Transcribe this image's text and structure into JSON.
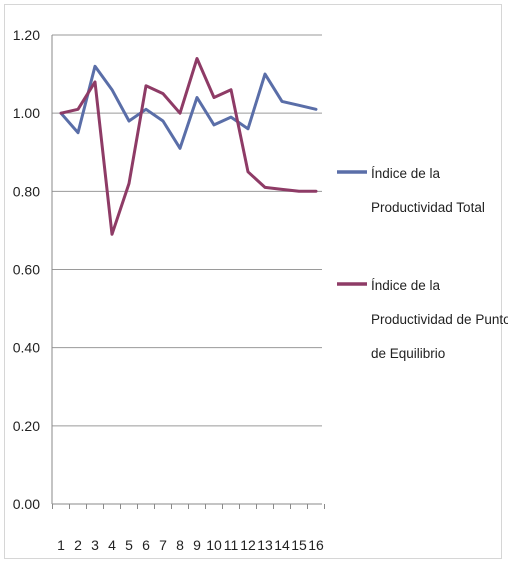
{
  "chart_data": {
    "type": "line",
    "categories": [
      "1",
      "2",
      "3",
      "4",
      "5",
      "6",
      "7",
      "8",
      "9",
      "10",
      "11",
      "12",
      "13",
      "14",
      "15",
      "16"
    ],
    "y_ticks": [
      "0.00",
      "0.20",
      "0.40",
      "0.60",
      "0.80",
      "1.00",
      "1.20"
    ],
    "ylim": [
      0,
      1.2
    ],
    "grid": true,
    "legend_position": "right",
    "series": [
      {
        "name": "Índice de la Productividad Total",
        "name_lines": [
          "Índice de la",
          "Productividad Total"
        ],
        "color": "#5a6ea8",
        "values": [
          1.0,
          0.95,
          1.12,
          1.06,
          0.98,
          1.01,
          0.98,
          0.91,
          1.04,
          0.97,
          0.99,
          0.96,
          1.1,
          1.03,
          1.02,
          1.01
        ]
      },
      {
        "name": "Índice de la Productividad de Punto de Equilibrio",
        "name_lines": [
          "Índice de la",
          "Productividad de Punto",
          "de Equilibrio"
        ],
        "color": "#8e3b66",
        "values": [
          1.0,
          1.01,
          1.08,
          0.69,
          0.82,
          1.07,
          1.05,
          1.0,
          1.14,
          1.04,
          1.06,
          0.85,
          0.81,
          0.805,
          0.8,
          0.8
        ]
      }
    ]
  }
}
